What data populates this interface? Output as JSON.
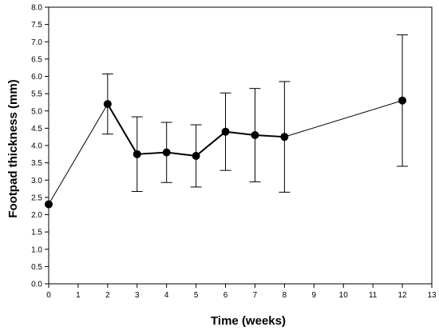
{
  "chart_data": {
    "type": "line",
    "title": "",
    "xlabel": "Time (weeks)",
    "ylabel": "Footpad thickness (mm)",
    "xlim": [
      0,
      13
    ],
    "ylim": [
      0,
      8
    ],
    "xticks": [
      "0",
      "1",
      "2",
      "3",
      "4",
      "5",
      "6",
      "7",
      "8",
      "9",
      "10",
      "11",
      "12",
      "13"
    ],
    "yticks": [
      "0.0",
      "0.5",
      "1.0",
      "1.5",
      "2.0",
      "2.5",
      "3.0",
      "3.5",
      "4.0",
      "4.5",
      "5.0",
      "5.5",
      "6.0",
      "6.5",
      "7.0",
      "7.5",
      "8.0"
    ],
    "grid": false,
    "series": [
      {
        "x": [
          0,
          2,
          3,
          4,
          5,
          6,
          7,
          8,
          12
        ],
        "y": [
          2.3,
          5.2,
          3.75,
          3.8,
          3.7,
          4.4,
          4.3,
          4.25,
          5.3
        ],
        "error_low": [
          null,
          4.33,
          2.67,
          2.93,
          2.8,
          3.28,
          2.95,
          2.65,
          3.4
        ],
        "error_high": [
          null,
          6.07,
          4.83,
          4.67,
          4.6,
          5.52,
          5.65,
          5.85,
          7.2
        ],
        "color": "#000000"
      }
    ]
  }
}
